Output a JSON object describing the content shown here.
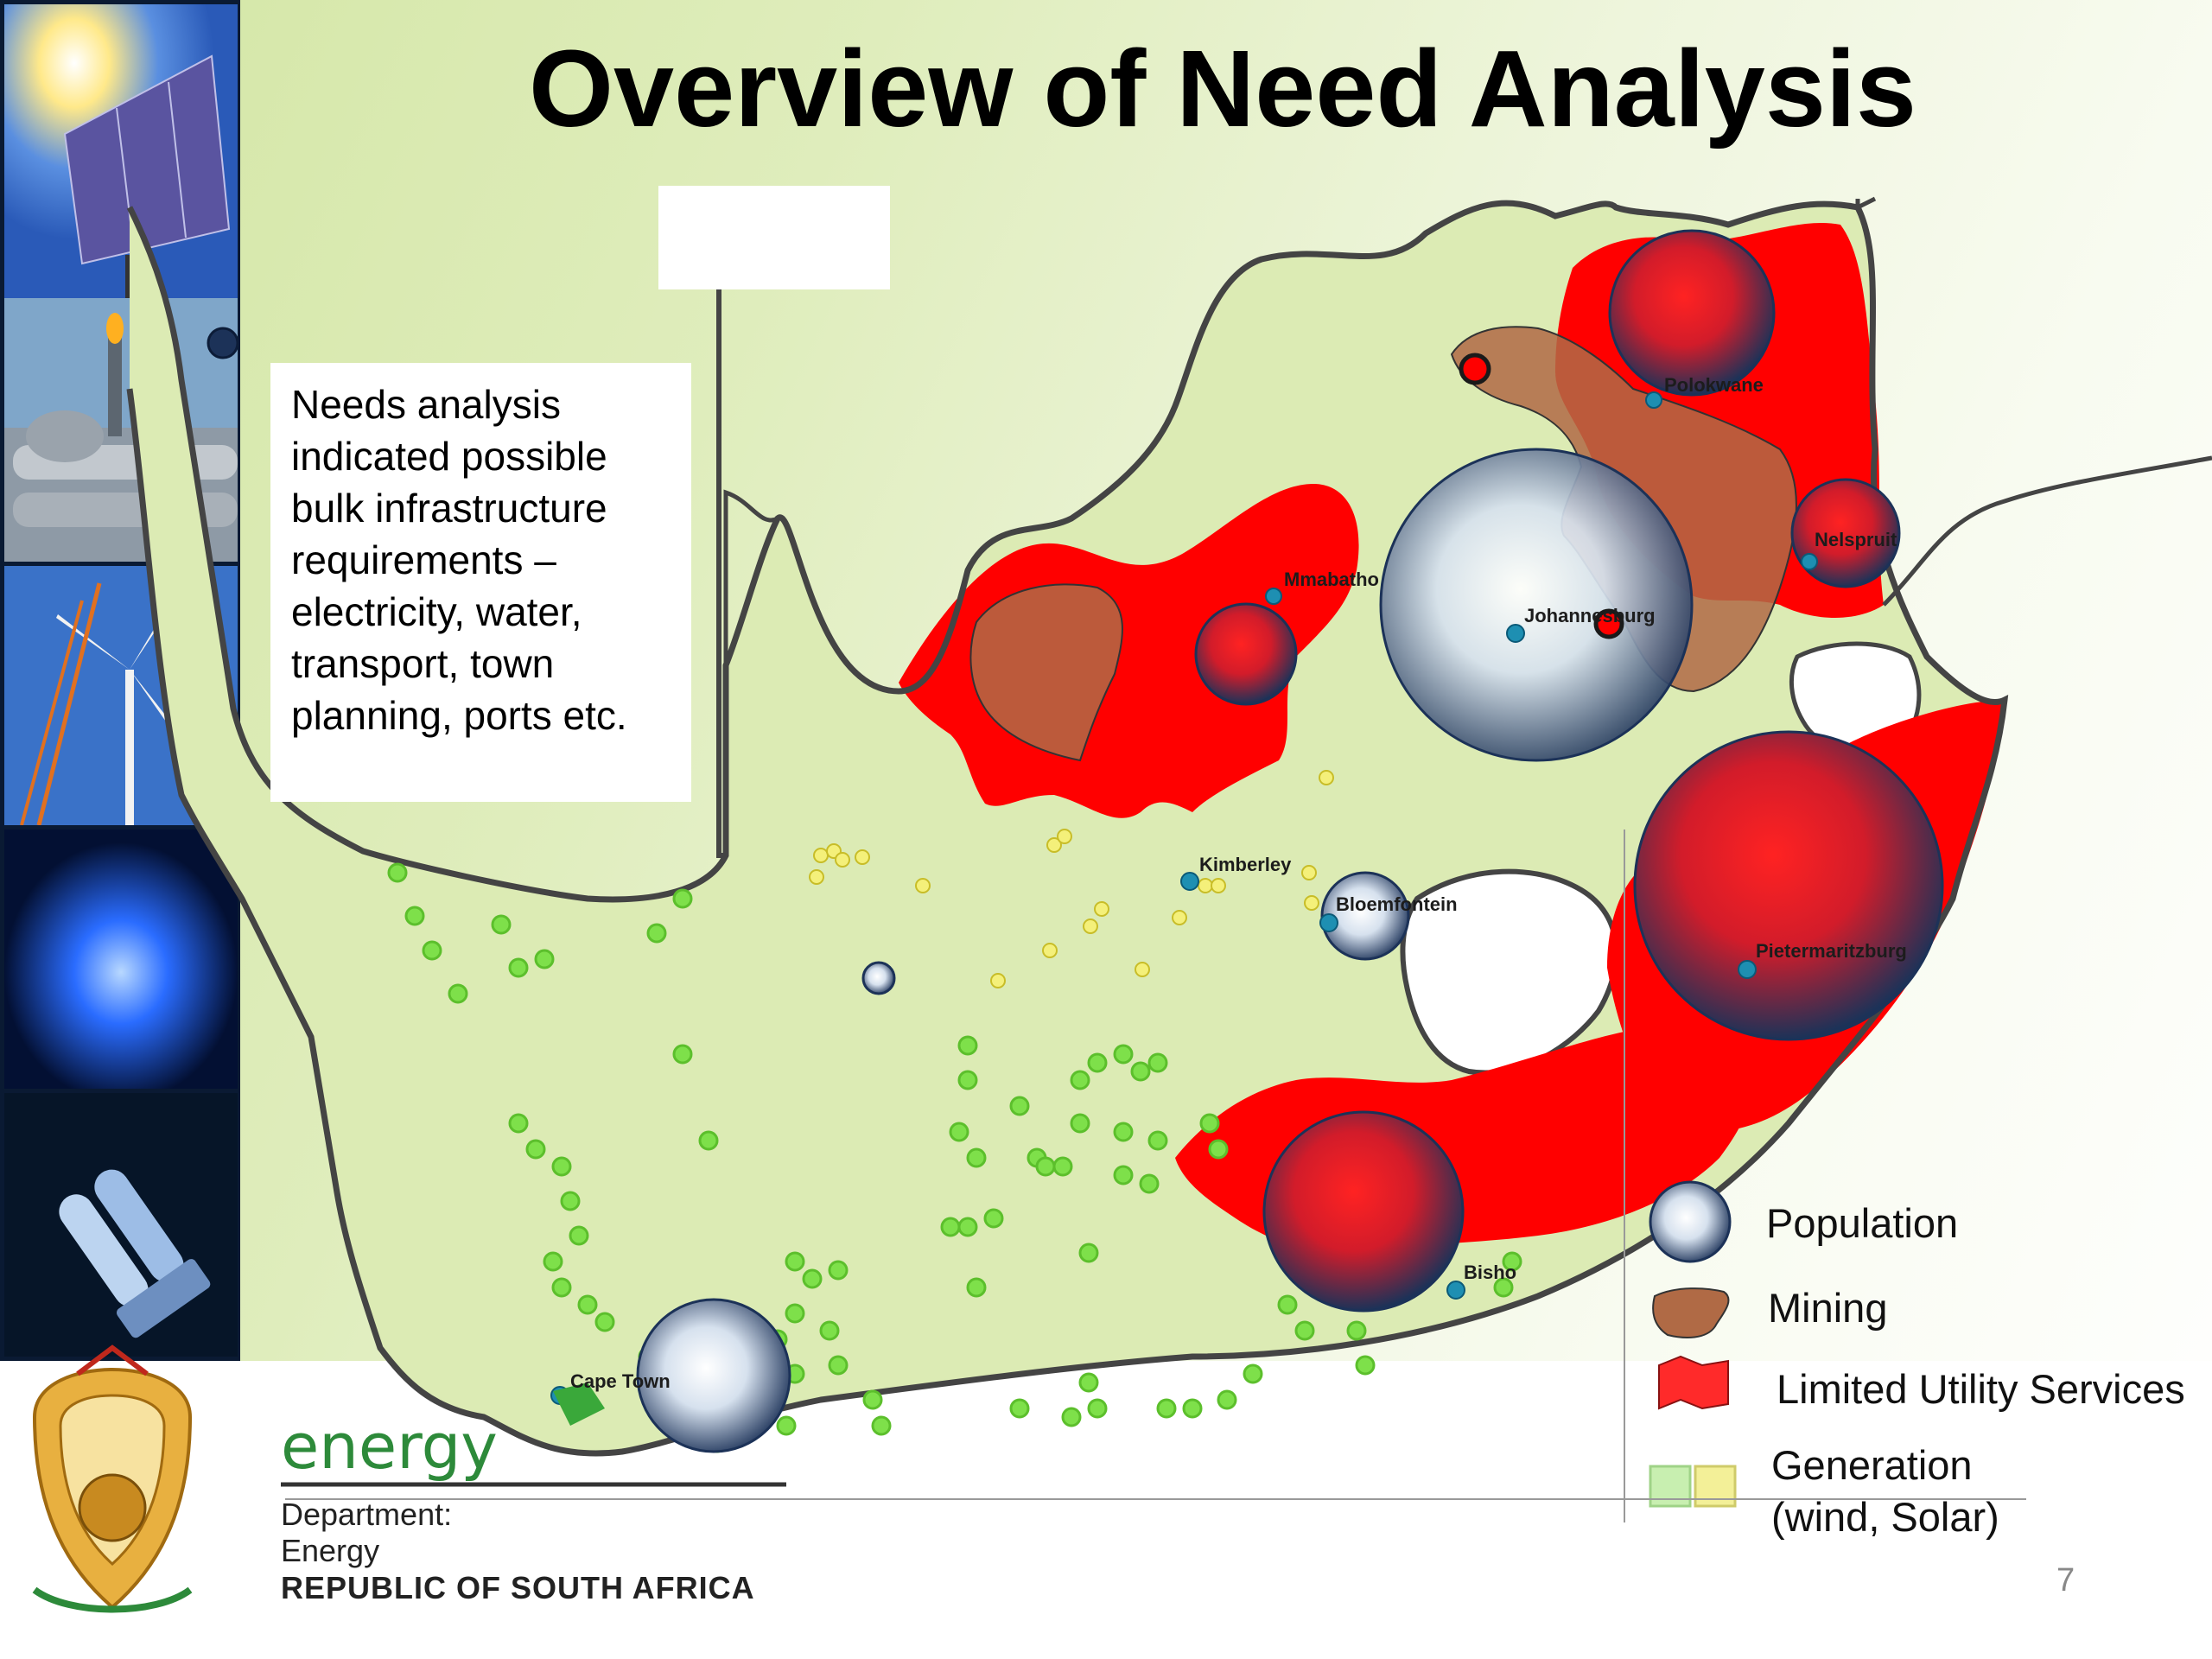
{
  "slide": {
    "title": "Overview of Need Analysis",
    "page_number": "7"
  },
  "note": {
    "lines": [
      "Needs analysis",
      "indicated possible",
      "bulk infrastructure",
      "requirements –",
      "electricity, water,",
      "transport, town",
      "planning, ports etc."
    ]
  },
  "cities": {
    "polokwane": "Polokwane",
    "nelspruit": "Nelspruit",
    "mmabatho": "Mmabatho",
    "johannesburg": "Johannesburg",
    "kimberley": "Kimberley",
    "bloemfontein": "Bloemfontein",
    "pietermaritzburg": "Pietermaritzburg",
    "bisho": "Bisho",
    "cape_town": "Cape Town"
  },
  "legend": {
    "population": "Population",
    "mining": "Mining",
    "limited_utility": "Limited Utility Services",
    "generation_line1": "Generation",
    "generation_line2": "(wind, Solar)"
  },
  "footer": {
    "energy": "energy",
    "dept_line1": "Department:",
    "dept_line2": "Energy",
    "republic": "REPUBLIC OF SOUTH AFRICA"
  },
  "colors": {
    "limited_utility": "#ff0000",
    "mining": "#b06a45",
    "population_dark": "#1c3258",
    "wind": "#7ee04a",
    "solar": "#f4f07a",
    "energy_green": "#2d8a3a"
  }
}
